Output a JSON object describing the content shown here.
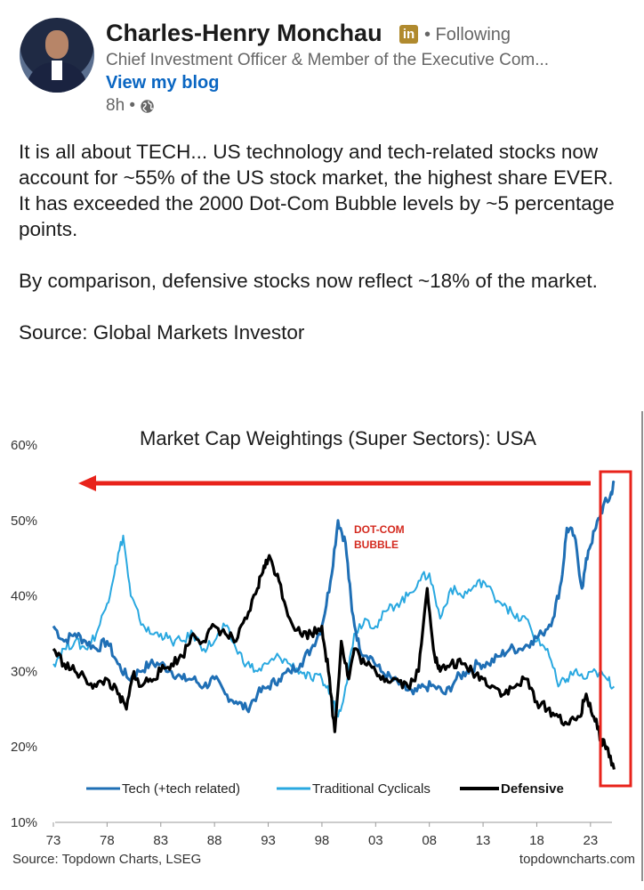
{
  "author": {
    "name": "Charles-Henry Monchau",
    "badge": "in",
    "follow_status": "• Following",
    "headline": "Chief Investment Officer & Member of the Executive Com...",
    "blog_link": "View my blog",
    "time": "8h •",
    "visibility_icon": "globe-icon"
  },
  "post": {
    "lines": [
      "It is all about TECH... US technology and tech-related stocks now account for ~55% of the US stock market, the highest share EVER.",
      "It has exceeded the 2000 Dot-Com Bubble levels by ~5 percentage points.",
      "By comparison, defensive stocks now reflect ~18% of the market.",
      "Source: Global Markets Investor"
    ]
  },
  "chart_data": {
    "type": "line",
    "title": "Market Cap Weightings (Super Sectors): USA",
    "annotation": "DOT-COM BUBBLE",
    "source": "Source: Topdown Charts, LSEG",
    "watermark": "topdowncharts.com",
    "x_ticks": [
      "73",
      "78",
      "83",
      "88",
      "93",
      "98",
      "03",
      "08",
      "13",
      "18",
      "23"
    ],
    "y_ticks": [
      "60%",
      "50%",
      "40%",
      "30%",
      "20%",
      "10%"
    ],
    "ylim": [
      10,
      60
    ],
    "xlim": [
      1973,
      2025
    ],
    "legend_position": "bottom",
    "colors": {
      "tech": "#1f6fb5",
      "cyclicals": "#29a8e0",
      "defensive": "#000000",
      "highlight": "#e8231b"
    },
    "series": [
      {
        "name": "Tech (+tech related)",
        "x": [
          1973,
          1974,
          1975,
          1976,
          1977,
          1978,
          1979,
          1980,
          1981,
          1982,
          1983,
          1984,
          1985,
          1986,
          1987,
          1988,
          1989,
          1990,
          1991,
          1992,
          1993,
          1994,
          1995,
          1996,
          1997,
          1998,
          1998.8,
          1999.5,
          2000.2,
          2000.8,
          2001.5,
          2002.5,
          2003.5,
          2004.5,
          2005.5,
          2006.5,
          2007.5,
          2008.5,
          2009.5,
          2010.5,
          2011.5,
          2012.5,
          2013.5,
          2014.5,
          2015.5,
          2016.5,
          2017.5,
          2018.5,
          2019.5,
          2020.3,
          2020.8,
          2021.5,
          2022.2,
          2022.8,
          2023.5,
          2024.2,
          2024.8,
          2025.2
        ],
        "values": [
          36,
          34,
          35,
          34,
          33,
          34,
          31,
          29,
          30,
          31,
          31,
          30,
          29,
          29,
          28,
          29,
          27,
          26,
          25,
          27,
          28,
          29,
          30,
          31,
          33,
          36,
          42,
          50,
          47,
          38,
          33,
          32,
          30,
          29,
          28,
          27,
          28,
          28,
          27,
          29,
          30,
          31,
          31,
          32,
          33,
          33,
          34,
          35,
          37,
          42,
          49,
          48,
          41,
          46,
          49,
          52,
          53,
          55
        ]
      },
      {
        "name": "Traditional Cyclicals",
        "x": [
          1973,
          1974,
          1975,
          1976,
          1977,
          1978,
          1978.8,
          1979.5,
          1980.2,
          1981,
          1982,
          1983,
          1984,
          1985,
          1986,
          1987,
          1988,
          1989,
          1990,
          1991,
          1992,
          1993,
          1994,
          1995,
          1996,
          1997,
          1998,
          1998.8,
          1999.5,
          2000.2,
          2001,
          2002,
          2003,
          2004,
          2005,
          2006,
          2007,
          2008,
          2009,
          2010,
          2011,
          2012,
          2013,
          2014,
          2015,
          2016,
          2017,
          2018,
          2019,
          2020,
          2020.8,
          2021.5,
          2022.5,
          2023.5,
          2024.5,
          2025.2
        ],
        "values": [
          31,
          33,
          34,
          33,
          35,
          39,
          44,
          48,
          40,
          37,
          35,
          35,
          34,
          34,
          35,
          33,
          34,
          36,
          33,
          31,
          30,
          31,
          32,
          31,
          30,
          29,
          29,
          27,
          24,
          28,
          35,
          37,
          36,
          38,
          39,
          40,
          42,
          43,
          37,
          41,
          40,
          41,
          42,
          40,
          39,
          37,
          37,
          34,
          33,
          28,
          29,
          30,
          29,
          30,
          29,
          28
        ]
      },
      {
        "name": "Defensive",
        "x": [
          1973,
          1974,
          1975,
          1976,
          1977,
          1978,
          1979,
          1979.8,
          1980.5,
          1981,
          1982,
          1983,
          1984,
          1985,
          1986,
          1987,
          1988,
          1989,
          1990,
          1991,
          1992,
          1992.6,
          1993.2,
          1994,
          1995,
          1996,
          1997,
          1998,
          1998.6,
          1999.2,
          1999.8,
          2000.5,
          2001,
          2002,
          2003,
          2004,
          2005,
          2006,
          2007,
          2007.8,
          2008.5,
          2009,
          2010,
          2011,
          2012,
          2013,
          2014,
          2015,
          2016,
          2017,
          2018,
          2019,
          2020,
          2021,
          2022,
          2022.6,
          2023.3,
          2024,
          2024.5,
          2025.2
        ],
        "values": [
          33,
          31,
          30,
          29,
          28,
          29,
          27,
          25,
          30,
          28,
          29,
          30,
          31,
          32,
          35,
          34,
          36,
          35,
          34,
          37,
          41,
          44,
          45,
          42,
          37,
          35,
          35,
          36,
          30,
          22,
          34,
          29,
          33,
          31,
          30,
          29,
          29,
          28,
          30,
          41,
          32,
          30,
          31,
          31,
          30,
          29,
          28,
          27,
          28,
          29,
          26,
          25,
          24,
          23,
          24,
          27,
          24,
          21,
          20,
          17
        ]
      }
    ]
  }
}
